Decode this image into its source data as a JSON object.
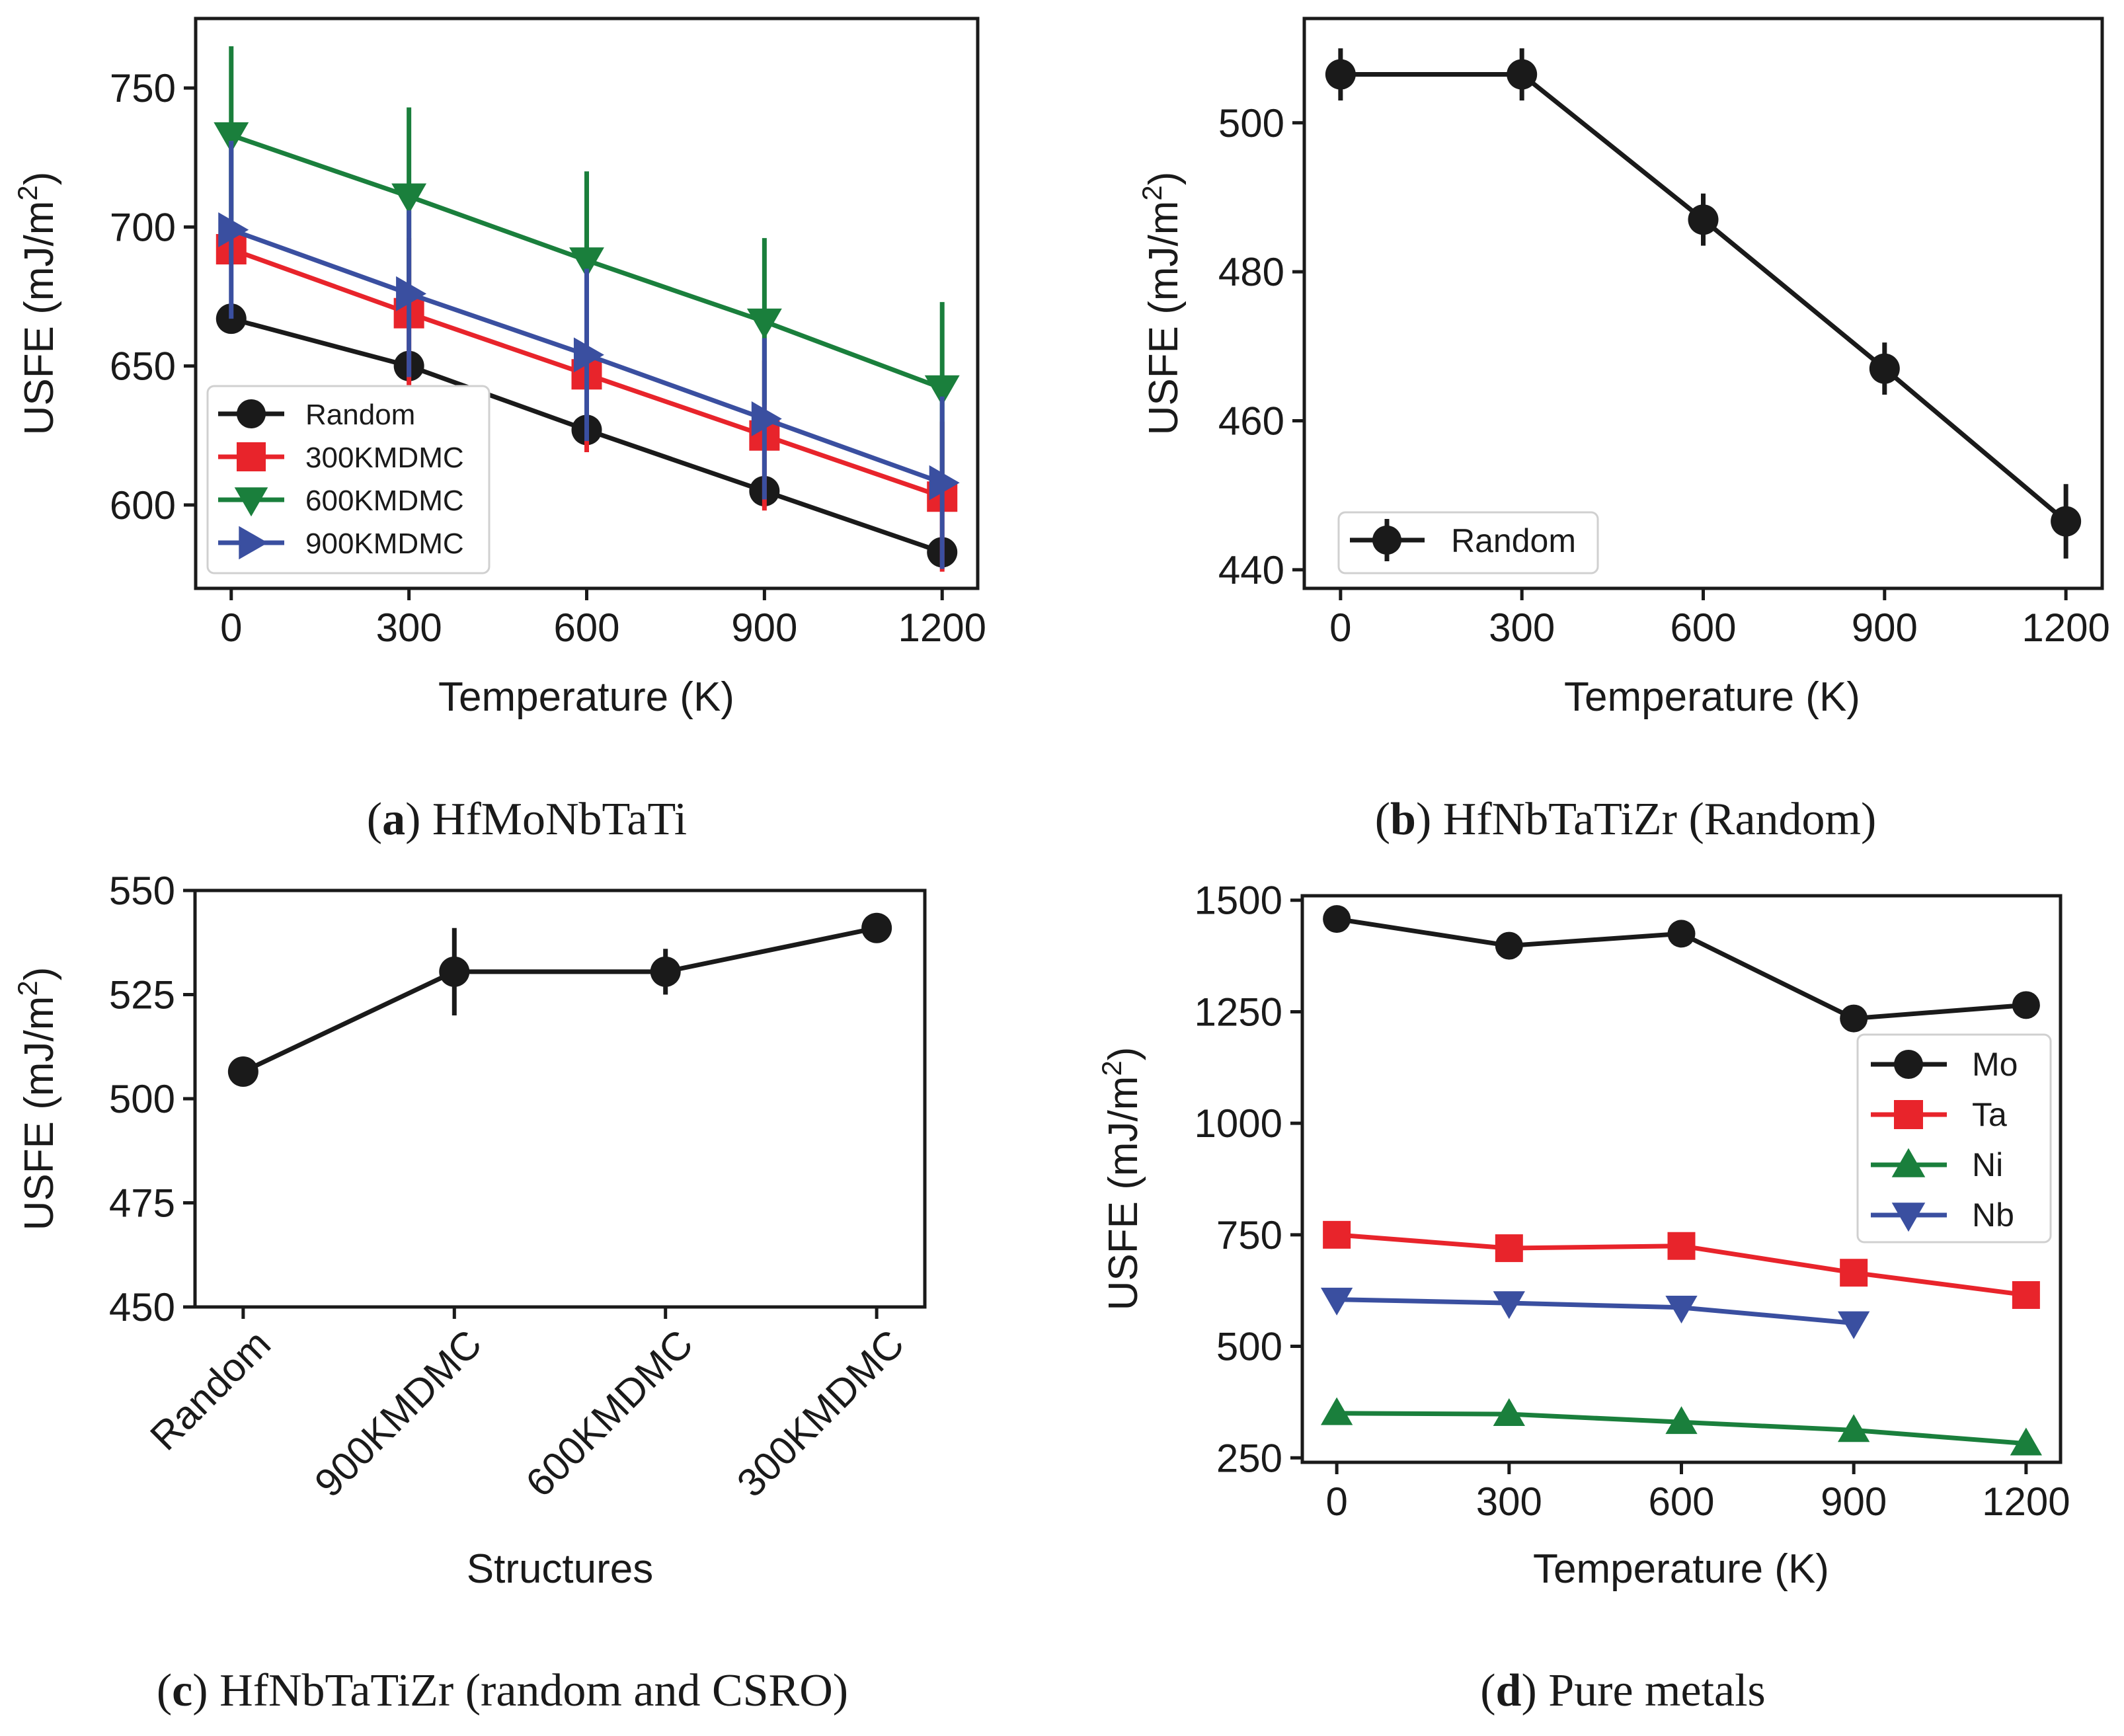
{
  "chart_data": [
    {
      "id": "a",
      "type": "line",
      "caption_letter": "a",
      "caption_text": "HfMoNbTaTi",
      "xlabel": "Temperature (K)",
      "ylabel": "USFE (mJ/m²)",
      "x": [
        0,
        300,
        600,
        900,
        1200
      ],
      "xticks": [
        "0",
        "300",
        "600",
        "900",
        "1200"
      ],
      "xlim": [
        -60,
        1260
      ],
      "yticks": [
        600,
        650,
        700,
        750
      ],
      "ylim": [
        570,
        775
      ],
      "legend_position": "lower-left",
      "series": [
        {
          "name": "Random",
          "color": "#1a1a1a",
          "marker": "circle",
          "values": [
            667,
            650,
            627,
            605,
            583
          ],
          "err": [
            0,
            0,
            0,
            0,
            0
          ]
        },
        {
          "name": "300KMDMC",
          "color": "#e8242b",
          "marker": "square",
          "values": [
            692,
            669,
            647,
            625,
            603
          ],
          "err": [
            0,
            27,
            28,
            27,
            27
          ]
        },
        {
          "name": "600KMDMC",
          "color": "#1a7f3c",
          "marker": "triangle-down",
          "values": [
            733,
            711,
            688,
            666,
            642
          ],
          "err": [
            32,
            32,
            32,
            30,
            31
          ]
        },
        {
          "name": "900KMDMC",
          "color": "#3a4fa0",
          "marker": "triangle-right",
          "values": [
            699,
            676,
            654,
            631,
            608
          ],
          "err": [
            32,
            30,
            31,
            29,
            31
          ]
        }
      ]
    },
    {
      "id": "b",
      "type": "line",
      "caption_letter": "b",
      "caption_text": "HfNbTaTiZr (Random)",
      "xlabel": "Temperature (K)",
      "ylabel": "USFE (mJ/m²)",
      "x": [
        0,
        300,
        600,
        900,
        1200
      ],
      "xticks": [
        "0",
        "300",
        "600",
        "900",
        "1200"
      ],
      "xlim": [
        -60,
        1260
      ],
      "yticks": [
        440,
        460,
        480,
        500
      ],
      "ylim": [
        437.5,
        514
      ],
      "legend_position": "lower-left",
      "series": [
        {
          "name": "Random",
          "color": "#1a1a1a",
          "marker": "circle",
          "values": [
            506.5,
            506.5,
            487,
            467,
            446.5
          ],
          "err": [
            3.5,
            3.5,
            3.5,
            3.5,
            5
          ]
        }
      ]
    },
    {
      "id": "c",
      "type": "line",
      "caption_letter": "c",
      "caption_text": "HfNbTaTiZr (random and CSRO)",
      "xlabel": "Structures",
      "ylabel": "USFE (mJ/m²)",
      "categories": [
        "Random",
        "900KMDMC",
        "600KMDMC",
        "300KMDMC"
      ],
      "yticks": [
        450,
        475,
        500,
        525,
        550
      ],
      "ylim": [
        450,
        550
      ],
      "series": [
        {
          "name": "",
          "color": "#1a1a1a",
          "marker": "circle",
          "values": [
            506.5,
            530.5,
            530.5,
            541
          ],
          "err": [
            0,
            10.5,
            5.5,
            0
          ]
        }
      ]
    },
    {
      "id": "d",
      "type": "line",
      "caption_letter": "d",
      "caption_text": "Pure metals",
      "xlabel": "Temperature (K)",
      "ylabel": "USFE (mJ/m²)",
      "x": [
        0,
        300,
        600,
        900,
        1200
      ],
      "xticks": [
        "0",
        "300",
        "600",
        "900",
        "1200"
      ],
      "xlim": [
        -60,
        1260
      ],
      "yticks": [
        250,
        500,
        750,
        1000,
        1250,
        1500
      ],
      "ylim": [
        240,
        1510
      ],
      "legend_position": "center-right",
      "series": [
        {
          "name": "Mo",
          "color": "#1a1a1a",
          "marker": "circle",
          "values": [
            1458,
            1398,
            1425,
            1235,
            1265
          ]
        },
        {
          "name": "Ta",
          "color": "#e8242b",
          "marker": "square",
          "values": [
            750,
            720,
            725,
            665,
            615
          ]
        },
        {
          "name": "Ni",
          "color": "#1a7f3c",
          "marker": "triangle-up",
          "values": [
            350,
            348,
            330,
            312,
            282
          ]
        },
        {
          "name": "Nb",
          "color": "#3a4fa0",
          "marker": "triangle-down",
          "values": [
            605,
            597,
            587,
            552,
            null
          ]
        }
      ]
    }
  ]
}
